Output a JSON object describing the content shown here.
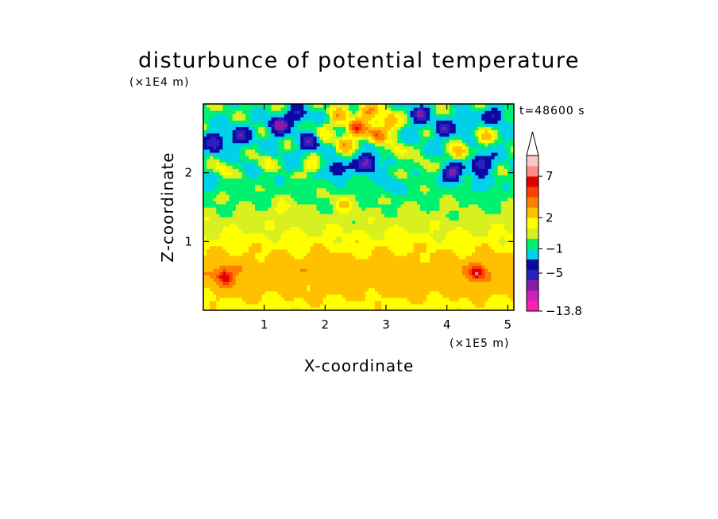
{
  "chart_data": {
    "type": "heatmap",
    "title": "disturbunce of potential temperature",
    "xlabel": "X-coordinate",
    "ylabel": "Z-coordinate",
    "x_unit": "(×1E5 m)",
    "y_unit": "(×1E4 m)",
    "time_label": "t=48600 s",
    "x_ticks": [
      "1",
      "2",
      "3",
      "4",
      "5"
    ],
    "y_ticks": [
      "1",
      "2"
    ],
    "xlim": [
      0,
      5.1
    ],
    "ylim": [
      0,
      3.0
    ],
    "colorbar": {
      "labels": [
        "7",
        "2",
        "−1",
        "−5",
        "−13.8"
      ],
      "label_levels": [
        7,
        2,
        -1,
        -5,
        -13.8
      ],
      "colors": [
        "#ff20b0",
        "#cc22bb",
        "#8a1aa8",
        "#2a20c0",
        "#0a0aa0",
        "#00d0e8",
        "#00f070",
        "#d8f020",
        "#ffff00",
        "#ffc000",
        "#ff8000",
        "#ff4000",
        "#e00000",
        "#ff8a8a",
        "#ffc8c8"
      ],
      "extend": "max"
    },
    "contour_profile": {
      "z": [
        0.05,
        0.3,
        0.6,
        0.9,
        1.2,
        1.5,
        1.8,
        2.1,
        2.4,
        2.7,
        2.95
      ],
      "base_level": [
        1.5,
        2.5,
        3,
        1.8,
        0.8,
        0,
        -0.5,
        -1,
        -1,
        -0.8,
        -0.5
      ]
    },
    "features": [
      {
        "x": 0.2,
        "z": 2.45,
        "level": -5
      },
      {
        "x": 0.6,
        "z": 2.55,
        "level": -4
      },
      {
        "x": 1.25,
        "z": 2.7,
        "level": -6
      },
      {
        "x": 1.55,
        "z": 2.85,
        "level": -4
      },
      {
        "x": 1.75,
        "z": 2.45,
        "level": -4
      },
      {
        "x": 1.95,
        "z": 2.6,
        "level": 2
      },
      {
        "x": 2.2,
        "z": 2.85,
        "level": 3
      },
      {
        "x": 2.3,
        "z": 2.4,
        "level": 4
      },
      {
        "x": 2.5,
        "z": 2.65,
        "level": 7
      },
      {
        "x": 2.7,
        "z": 2.9,
        "level": 5
      },
      {
        "x": 2.85,
        "z": 2.55,
        "level": 6
      },
      {
        "x": 3.05,
        "z": 2.75,
        "level": 5
      },
      {
        "x": 2.7,
        "z": 2.15,
        "level": -6
      },
      {
        "x": 2.2,
        "z": 2.05,
        "level": -4
      },
      {
        "x": 3.2,
        "z": 2.3,
        "level": 3
      },
      {
        "x": 3.55,
        "z": 2.85,
        "level": -5
      },
      {
        "x": 3.95,
        "z": 2.65,
        "level": -4
      },
      {
        "x": 4.2,
        "z": 2.3,
        "level": 4
      },
      {
        "x": 4.35,
        "z": 2.75,
        "level": -3
      },
      {
        "x": 4.6,
        "z": 2.55,
        "level": 3
      },
      {
        "x": 4.8,
        "z": 2.85,
        "level": -4
      },
      {
        "x": 4.55,
        "z": 2.15,
        "level": -5
      },
      {
        "x": 4.1,
        "z": 2.0,
        "level": -6
      },
      {
        "x": 0.3,
        "z": 2.05,
        "level": 2.5
      },
      {
        "x": 1.0,
        "z": 2.15,
        "level": 2
      },
      {
        "x": 1.8,
        "z": 2.1,
        "level": 2.5
      },
      {
        "x": 3.6,
        "z": 2.1,
        "level": 2
      },
      {
        "x": 0.05,
        "z": 1.85,
        "level": -1.5
      },
      {
        "x": 3.1,
        "z": 1.8,
        "level": -1.5
      },
      {
        "x": 4.6,
        "z": 1.8,
        "level": -1.5
      },
      {
        "x": 2.3,
        "z": 1.55,
        "level": 2
      },
      {
        "x": 1.3,
        "z": 1.5,
        "level": 1.5
      },
      {
        "x": 0.35,
        "z": 0.5,
        "level": 4
      },
      {
        "x": 4.5,
        "z": 0.55,
        "level": 4
      }
    ]
  }
}
